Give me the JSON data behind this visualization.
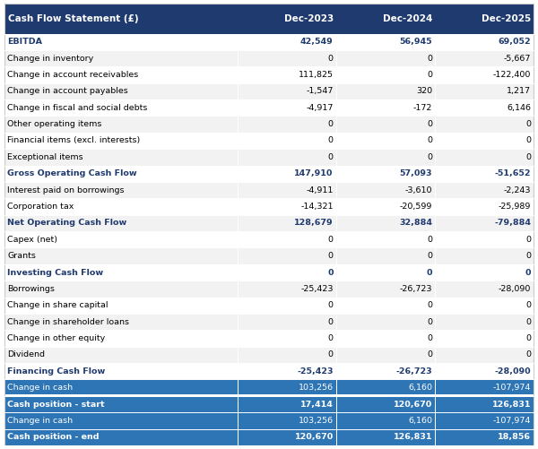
{
  "title_col": "Cash Flow Statement (£)",
  "col_headers": [
    "Dec-2023",
    "Dec-2024",
    "Dec-2025"
  ],
  "header_bg": "#1f3a6e",
  "header_fg": "#ffffff",
  "highlight_bg": "#2e75b6",
  "highlight_fg": "#ffffff",
  "section_bg": "#2e75b6",
  "section_fg": "#ffffff",
  "bold_fg": "#1f3a6e",
  "normal_fg": "#000000",
  "row_bg_even": "#ffffff",
  "row_bg_odd": "#f2f2f2",
  "rows": [
    {
      "label": "EBITDA",
      "values": [
        "42,549",
        "56,945",
        "69,052"
      ],
      "style": "bold"
    },
    {
      "label": "Change in inventory",
      "values": [
        "0",
        "0",
        "-5,667"
      ],
      "style": "normal"
    },
    {
      "label": "Change in account receivables",
      "values": [
        "111,825",
        "0",
        "-122,400"
      ],
      "style": "normal"
    },
    {
      "label": "Change in account payables",
      "values": [
        "-1,547",
        "320",
        "1,217"
      ],
      "style": "normal"
    },
    {
      "label": "Change in fiscal and social debts",
      "values": [
        "-4,917",
        "-172",
        "6,146"
      ],
      "style": "normal"
    },
    {
      "label": "Other operating items",
      "values": [
        "0",
        "0",
        "0"
      ],
      "style": "normal"
    },
    {
      "label": "Financial items (excl. interests)",
      "values": [
        "0",
        "0",
        "0"
      ],
      "style": "normal"
    },
    {
      "label": "Exceptional items",
      "values": [
        "0",
        "0",
        "0"
      ],
      "style": "normal"
    },
    {
      "label": "Gross Operating Cash Flow",
      "values": [
        "147,910",
        "57,093",
        "-51,652"
      ],
      "style": "bold"
    },
    {
      "label": "Interest paid on borrowings",
      "values": [
        "-4,911",
        "-3,610",
        "-2,243"
      ],
      "style": "normal"
    },
    {
      "label": "Corporation tax",
      "values": [
        "-14,321",
        "-20,599",
        "-25,989"
      ],
      "style": "normal"
    },
    {
      "label": "Net Operating Cash Flow",
      "values": [
        "128,679",
        "32,884",
        "-79,884"
      ],
      "style": "bold"
    },
    {
      "label": "Capex (net)",
      "values": [
        "0",
        "0",
        "0"
      ],
      "style": "normal"
    },
    {
      "label": "Grants",
      "values": [
        "0",
        "0",
        "0"
      ],
      "style": "normal"
    },
    {
      "label": "Investing Cash Flow",
      "values": [
        "0",
        "0",
        "0"
      ],
      "style": "bold"
    },
    {
      "label": "Borrowings",
      "values": [
        "-25,423",
        "-26,723",
        "-28,090"
      ],
      "style": "normal"
    },
    {
      "label": "Change in share capital",
      "values": [
        "0",
        "0",
        "0"
      ],
      "style": "normal"
    },
    {
      "label": "Change in shareholder loans",
      "values": [
        "0",
        "0",
        "0"
      ],
      "style": "normal"
    },
    {
      "label": "Change in other equity",
      "values": [
        "0",
        "0",
        "0"
      ],
      "style": "normal"
    },
    {
      "label": "Dividend",
      "values": [
        "0",
        "0",
        "0"
      ],
      "style": "normal"
    },
    {
      "label": "Financing Cash Flow",
      "values": [
        "-25,423",
        "-26,723",
        "-28,090"
      ],
      "style": "bold"
    },
    {
      "label": "Change in cash",
      "values": [
        "103,256",
        "6,160",
        "-107,974"
      ],
      "style": "highlight"
    },
    {
      "label": "Cash position - start",
      "values": [
        "17,414",
        "120,670",
        "126,831"
      ],
      "style": "section_bold"
    },
    {
      "label": "Change in cash",
      "values": [
        "103,256",
        "6,160",
        "-107,974"
      ],
      "style": "section_normal"
    },
    {
      "label": "Cash position - end",
      "values": [
        "120,670",
        "126,831",
        "18,856"
      ],
      "style": "section_bold"
    }
  ]
}
